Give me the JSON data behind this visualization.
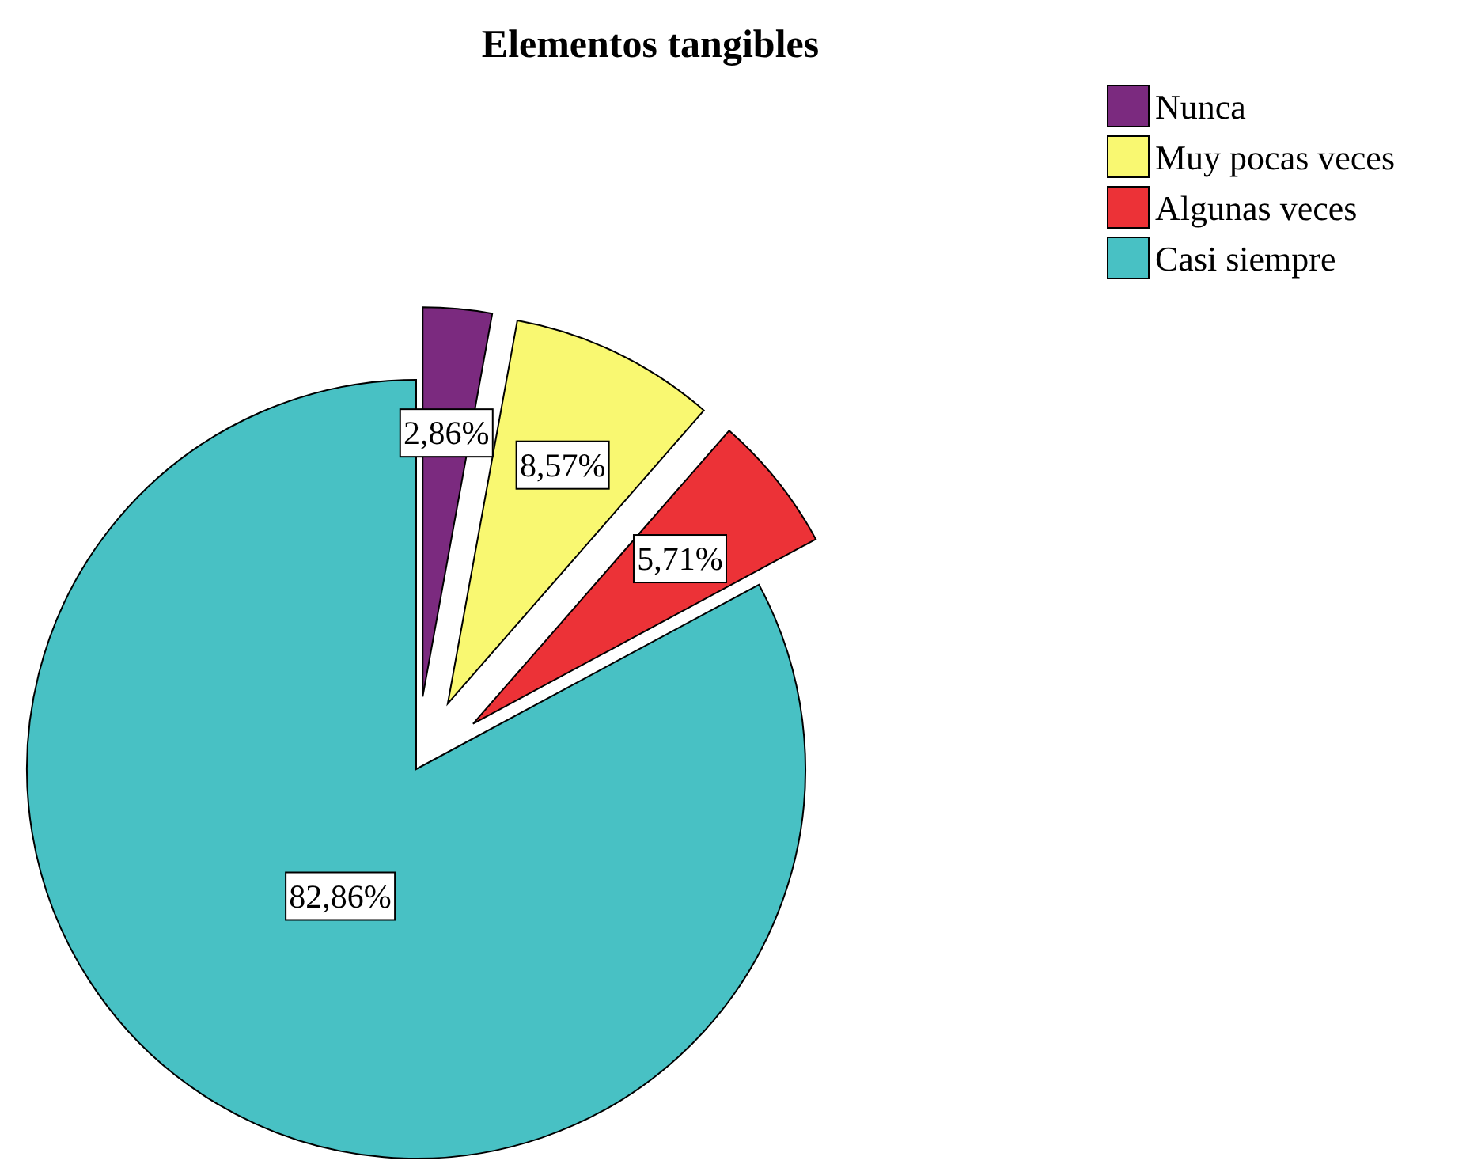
{
  "chart_data": {
    "type": "pie",
    "title": "Elementos tangibles",
    "categories": [
      "Nunca",
      "Muy pocas veces",
      "Algunas veces",
      "Casi siempre"
    ],
    "values": [
      2.86,
      8.57,
      5.71,
      82.86
    ],
    "colors": [
      "#7b2a7f",
      "#f9f871",
      "#ec3237",
      "#48c1c4"
    ],
    "value_labels": [
      "2,86%",
      "8,57%",
      "5,71%",
      "82,86%"
    ],
    "legend": "top right"
  }
}
